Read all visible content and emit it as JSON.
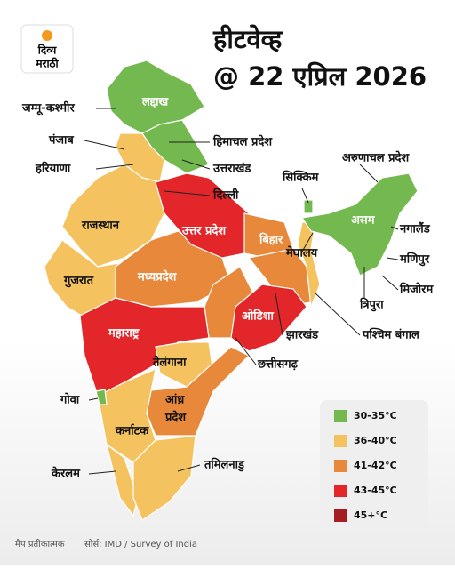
{
  "logo": {
    "line1": "दिव्य",
    "line2": "मराठी"
  },
  "title": {
    "line1": "हीटवेव्ह",
    "line2": "@ 22 एप्रिल 2026"
  },
  "labels": [
    "लद्दाख",
    "जम्मू-कश्मीर",
    "पंजाब",
    "हरियाणा",
    "हिमाचल प्रदेश",
    "उत्तराखंड",
    "दिल्ली",
    "सिक्किम",
    "अरुणाचल प्रदेश",
    "असम",
    "नगालैंड",
    "मेघालय",
    "मणिपुर",
    "मिजोरम",
    "त्रिपुरा",
    "राजस्थान",
    "उत्तर प्रदेश",
    "बिहार",
    "गुजरात",
    "मध्यप्रदेश",
    "महाराष्ट्र",
    "ओडिशा",
    "झारखंड",
    "पश्चिम बंगाल",
    "तेलंगाना",
    "छत्तीसगढ़",
    "गोवा",
    "आंध्र",
    "प्रदेश",
    "कर्नाटक",
    "केरलम",
    "तमिलनाडु"
  ],
  "legend": [
    {
      "label": "30-35°C",
      "color": "#74b94f"
    },
    {
      "label": "36-40°C",
      "color": "#f4c35f"
    },
    {
      "label": "41-42°C",
      "color": "#e8883b"
    },
    {
      "label": "43-45°C",
      "color": "#e3262a"
    },
    {
      "label": "45+°C",
      "color": "#a51d21"
    }
  ],
  "footer": {
    "note": "मैप प्रतीकात्मक",
    "source": "सोर्स: IMD / Survey of India"
  }
}
